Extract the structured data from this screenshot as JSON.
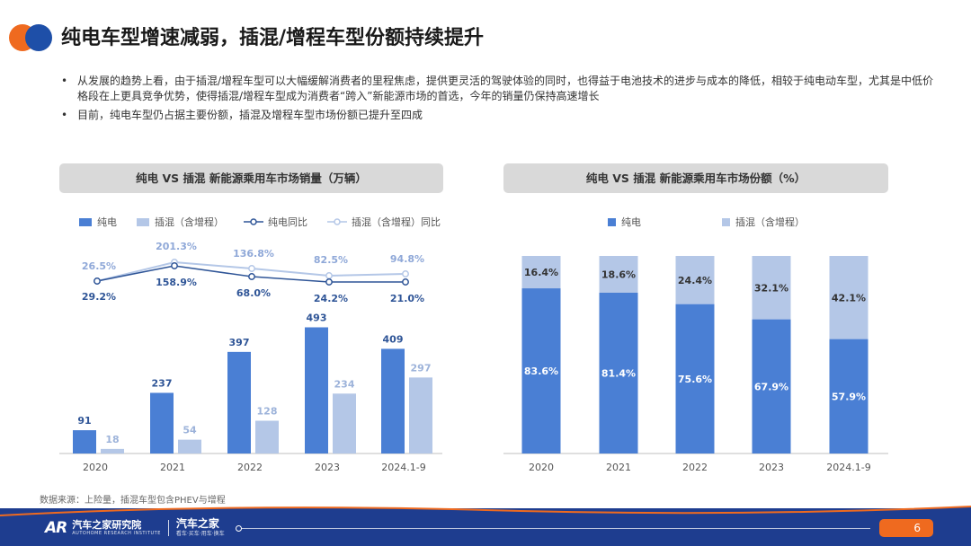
{
  "title": "纯电车型增速减弱，插混/增程车型份额持续提升",
  "bullets": [
    "从发展的趋势上看，由于插混/增程车型可以大幅缓解消费者的里程焦虑，提供更灵活的驾驶体验的同时，也得益于电池技术的进步与成本的降低，相较于纯电动车型，尤其是中低价格段在上更具竞争优势，使得插混/增程车型成为消费者“跨入”新能源市场的首选，今年的销量仍保持高速增长",
    "目前，纯电车型仍占据主要份额，插混及增程车型市场份额已提升至四成"
  ],
  "bullet_symbol": "•",
  "left_chart_header": "纯电 VS 插混 新能源乘用车市场销量（万辆）",
  "right_chart_header": "纯电 VS 插混 新能源乘用车市场份额（%）",
  "colors": {
    "bev": "#4a7fd4",
    "phev": "#b4c7e7",
    "bev_line": "#2f5597",
    "phev_line": "#b4c7e7"
  },
  "chart_data": [
    {
      "type": "bar",
      "title": "纯电 VS 插混 新能源乘用车市场销量（万辆）",
      "categories": [
        "2020",
        "2021",
        "2022",
        "2023",
        "2024.1-9"
      ],
      "series": [
        {
          "name": "纯电",
          "type": "bar",
          "values": [
            91,
            237,
            397,
            493,
            409
          ]
        },
        {
          "name": "插混（含增程）",
          "type": "bar",
          "values": [
            18,
            54,
            128,
            234,
            297
          ]
        },
        {
          "name": "纯电同比",
          "type": "line",
          "labels": [
            "29.2%",
            "158.9%",
            "68.0%",
            "24.2%",
            "21.0%"
          ]
        },
        {
          "name": "插混（含增程）同比",
          "type": "line",
          "labels": [
            "26.5%",
            "201.3%",
            "136.8%",
            "82.5%",
            "94.8%"
          ]
        }
      ],
      "legend_position": "top",
      "grid": false
    },
    {
      "type": "bar",
      "stacked": true,
      "title": "纯电 VS 插混 新能源乘用车市场份额（%）",
      "categories": [
        "2020",
        "2021",
        "2022",
        "2023",
        "2024.1-9"
      ],
      "series": [
        {
          "name": "纯电",
          "values": [
            83.6,
            81.4,
            75.6,
            67.9,
            57.9
          ]
        },
        {
          "name": "插混（含增程）",
          "values": [
            16.4,
            18.6,
            24.4,
            32.1,
            42.1
          ]
        }
      ],
      "ylim": [
        0,
        100
      ],
      "legend_position": "top",
      "grid": false
    }
  ],
  "source_note": "数据来源：上险量，插混车型包含PHEV与增程",
  "footer": {
    "brand_mark": "AR",
    "brand_name": "汽车之家研究院",
    "brand_sub": "AUTOHOME RESEARCH INSTITUTE",
    "brand_name2": "汽车之家",
    "brand_sub2": "看车·买车·用车·换车",
    "page_number": "6"
  }
}
